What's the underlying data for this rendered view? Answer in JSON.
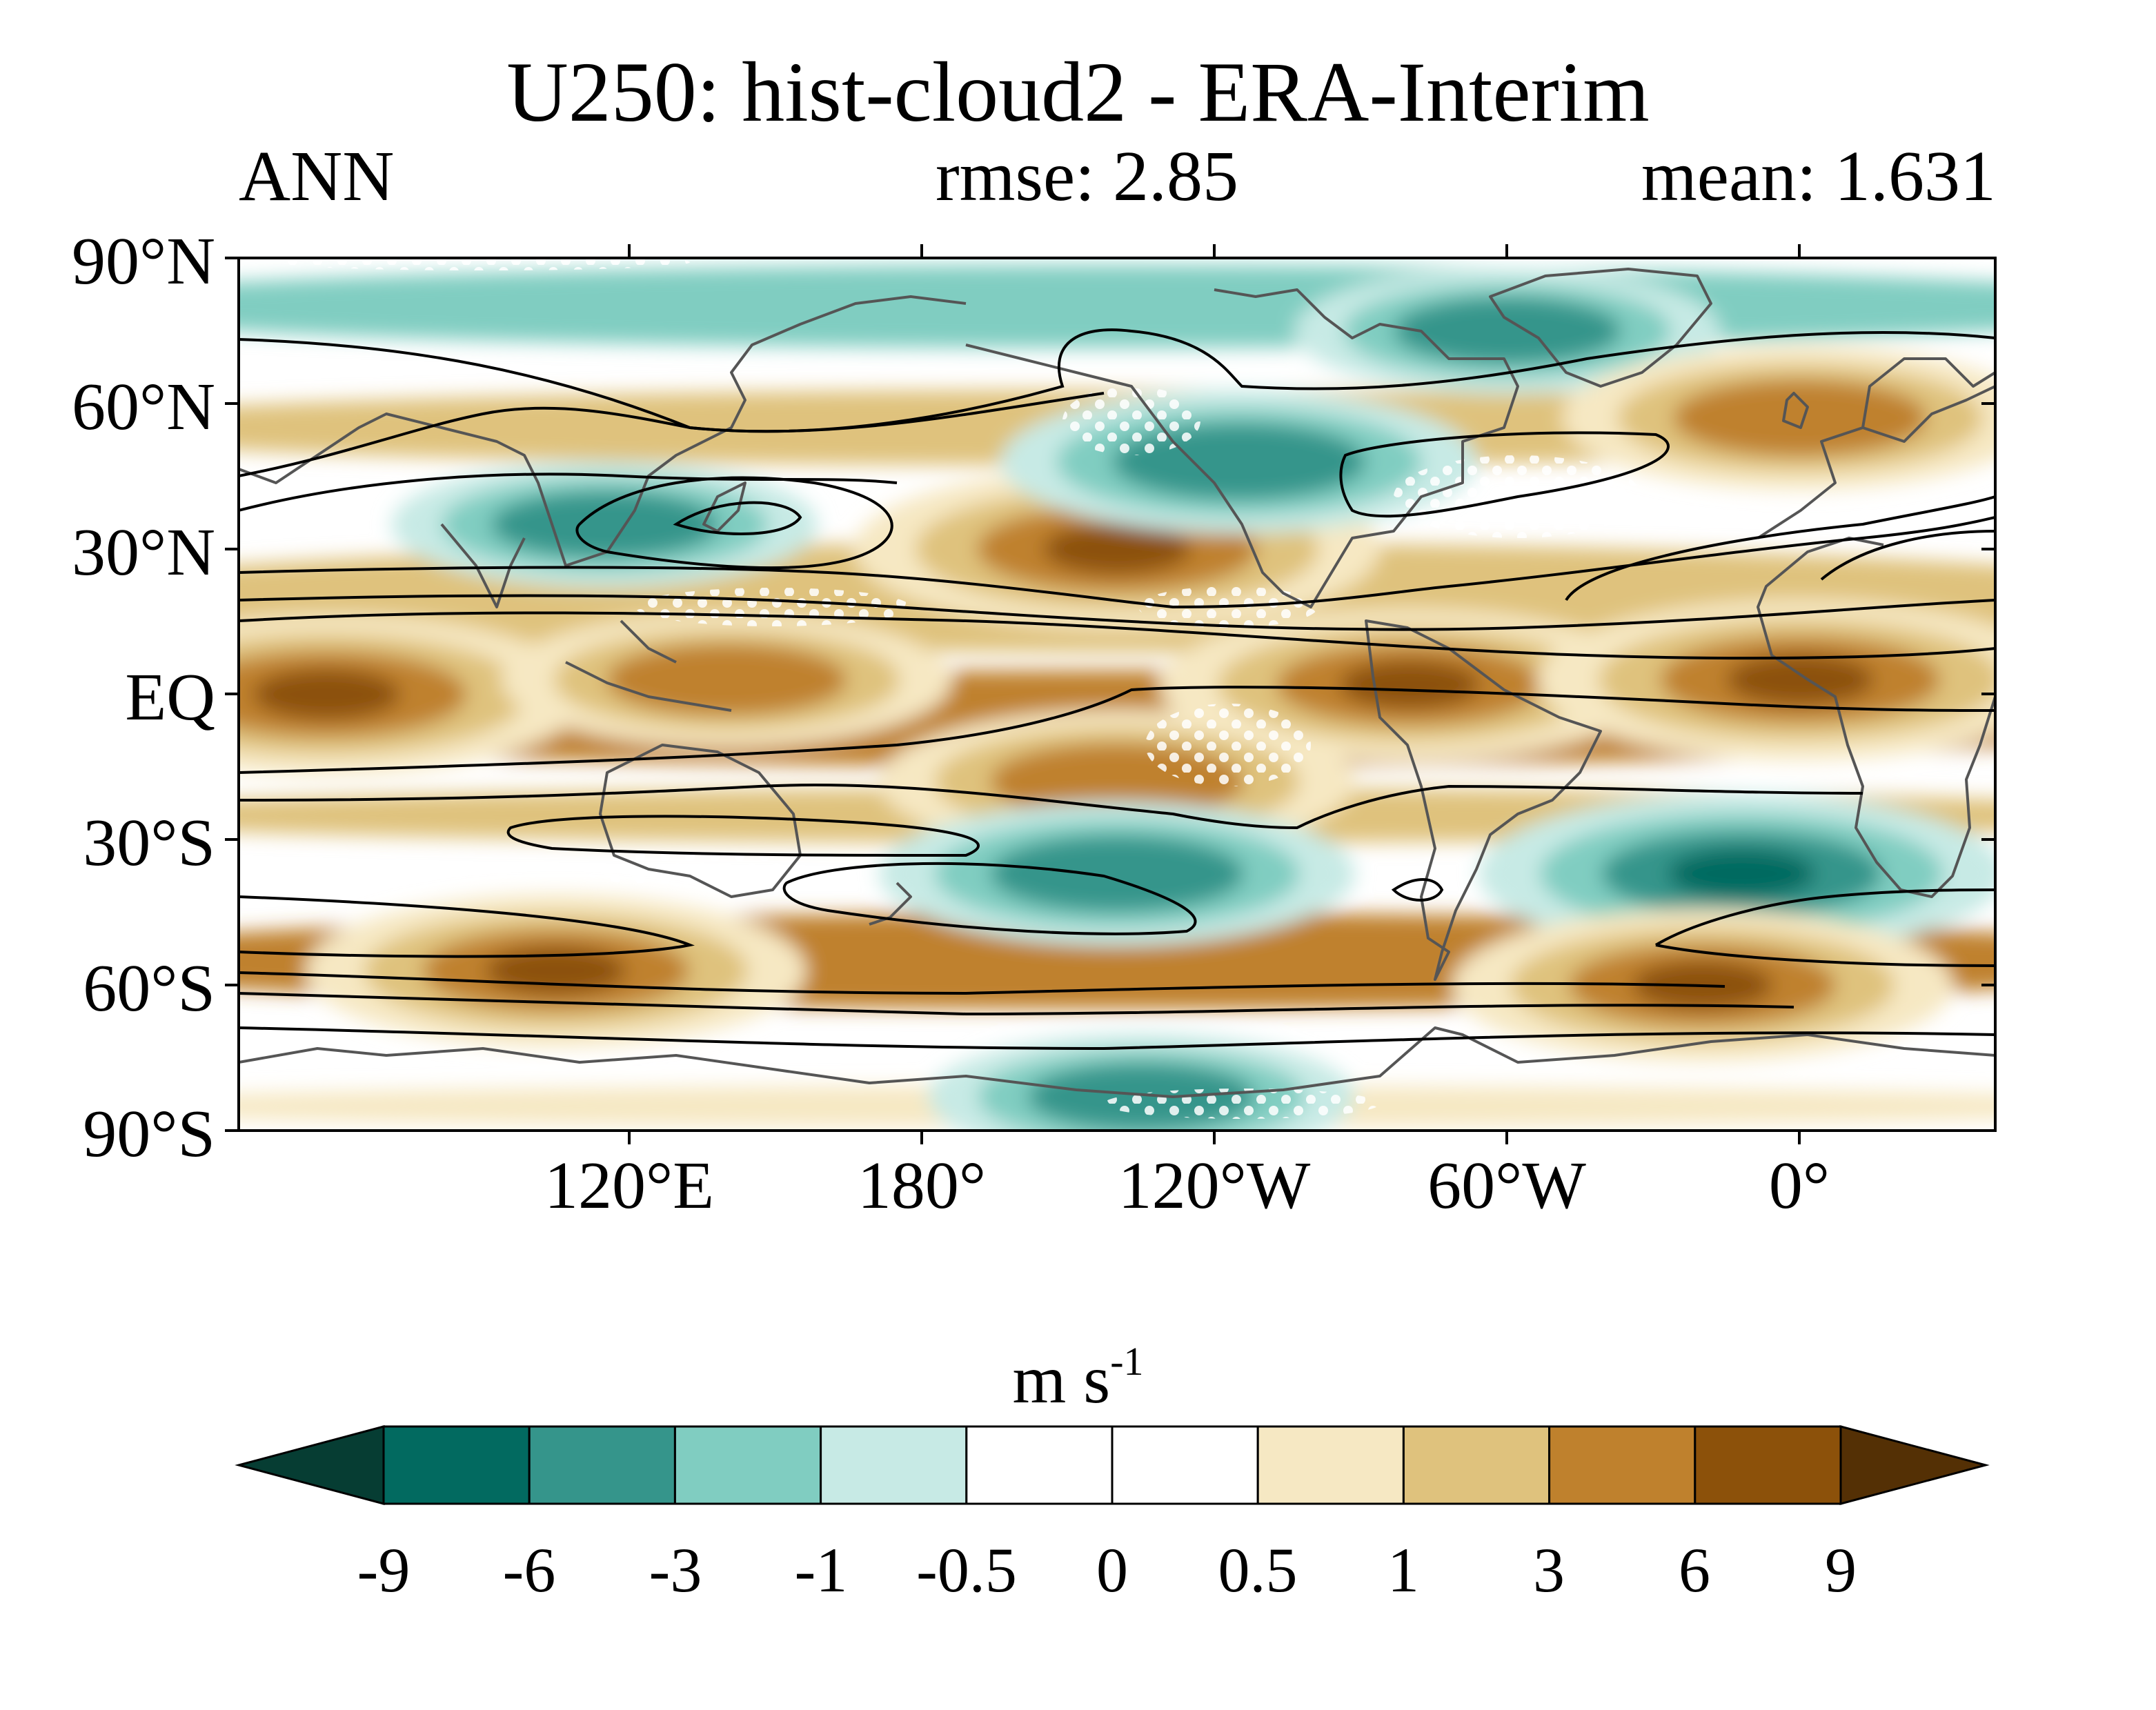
{
  "title": "U250: hist-cloud2 - ERA-Interim",
  "subtitle_left": "ANN",
  "subtitle_center": "rmse: 2.85",
  "subtitle_right": "mean: 1.631",
  "y_ticks": [
    "90°N",
    "60°N",
    "30°N",
    "EQ",
    "30°S",
    "60°S",
    "90°S"
  ],
  "x_ticks": [
    "120°E",
    "180°",
    "120°W",
    "60°W",
    "0°"
  ],
  "colorbar": {
    "units_base": "m s",
    "units_exp": "-1",
    "labels": [
      "-9",
      "-6",
      "-3",
      "-1",
      "-0.5",
      "0",
      "0.5",
      "1",
      "3",
      "6",
      "9"
    ],
    "colors": {
      "lt_-9": "#063d33",
      "-9_-6": "#026a60",
      "-6_-3": "#35958b",
      "-3_-1": "#80cdc1",
      "-1_-0.5": "#c7eae5",
      "-0.5_0": "#ffffff",
      "0_0.5": "#ffffff",
      "0.5_1": "#f6e8c3",
      "1_3": "#dfc27d",
      "3_6": "#bf812d",
      "6_9": "#8c510a",
      "gt_9": "#543005"
    }
  },
  "chart_data": {
    "type": "heatmap",
    "variable": "U250 difference (hist-cloud2 minus ERA-Interim)",
    "units": "m s-1",
    "lon_range": [
      30,
      390
    ],
    "lat_range": [
      -90,
      90
    ],
    "contour_levels": [
      -9,
      -6,
      -3,
      -1,
      -0.5,
      0,
      0.5,
      1,
      3,
      6,
      9
    ],
    "anomaly_regions": [
      {
        "lon": 48,
        "lat": 0,
        "value": 7
      },
      {
        "lon": 130,
        "lat": 3,
        "value": 4
      },
      {
        "lon": 210,
        "lat": 30,
        "value": 7
      },
      {
        "lon": 270,
        "lat": 2,
        "value": 6
      },
      {
        "lon": 350,
        "lat": 3,
        "value": 7
      },
      {
        "lon": 210,
        "lat": -18,
        "value": 5
      },
      {
        "lon": 235,
        "lat": 48,
        "value": -5
      },
      {
        "lon": 105,
        "lat": 35,
        "value": -3
      },
      {
        "lon": 210,
        "lat": -37,
        "value": -5
      },
      {
        "lon": 338,
        "lat": -37,
        "value": -7
      },
      {
        "lon": 290,
        "lat": 75,
        "value": -3
      },
      {
        "lon": 95,
        "lat": -57,
        "value": 6
      },
      {
        "lon": 330,
        "lat": -60,
        "value": 6
      },
      {
        "lon": 215,
        "lat": -83,
        "value": -3
      },
      {
        "lon": 350,
        "lat": 57,
        "value": 5
      }
    ],
    "overlay": "black contour lines of ERA-Interim climatological U250"
  }
}
